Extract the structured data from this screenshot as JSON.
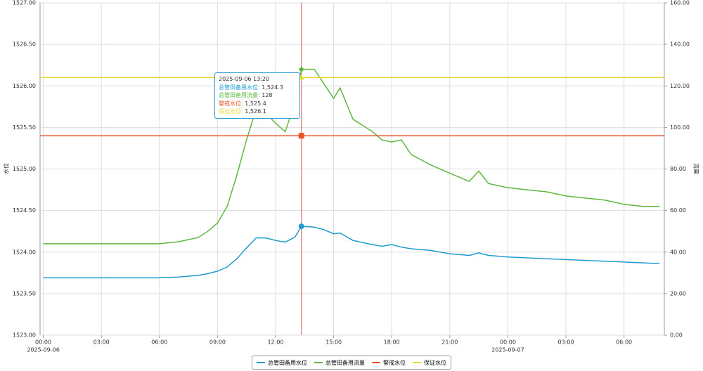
{
  "chart_data": {
    "type": "line",
    "x": [
      "2025-09-06 00:00",
      "2025-09-06 01:00",
      "2025-09-06 02:00",
      "2025-09-06 03:00",
      "2025-09-06 04:00",
      "2025-09-06 05:00",
      "2025-09-06 06:00",
      "2025-09-06 07:00",
      "2025-09-06 08:00",
      "2025-09-06 08:30",
      "2025-09-06 09:00",
      "2025-09-06 09:30",
      "2025-09-06 10:00",
      "2025-09-06 10:30",
      "2025-09-06 11:00",
      "2025-09-06 11:30",
      "2025-09-06 12:00",
      "2025-09-06 12:30",
      "2025-09-06 13:00",
      "2025-09-06 13:20",
      "2025-09-06 14:00",
      "2025-09-06 14:30",
      "2025-09-06 15:00",
      "2025-09-06 15:20",
      "2025-09-06 16:00",
      "2025-09-06 17:00",
      "2025-09-06 17:30",
      "2025-09-06 18:00",
      "2025-09-06 18:30",
      "2025-09-06 19:00",
      "2025-09-06 20:00",
      "2025-09-06 21:00",
      "2025-09-06 22:00",
      "2025-09-06 22:30",
      "2025-09-06 23:00",
      "2025-09-07 00:00",
      "2025-09-07 01:00",
      "2025-09-07 02:00",
      "2025-09-07 03:00",
      "2025-09-07 04:00",
      "2025-09-07 05:00",
      "2025-09-07 06:00",
      "2025-09-07 07:00",
      "2025-09-07 07:50"
    ],
    "series": [
      {
        "name": "总管田备用水位",
        "color": "#1f9bd1",
        "axis": "y",
        "values": [
          1523.69,
          1523.69,
          1523.69,
          1523.69,
          1523.69,
          1523.69,
          1523.69,
          1523.7,
          1523.72,
          1523.74,
          1523.77,
          1523.82,
          1523.92,
          1524.05,
          1524.17,
          1524.17,
          1524.14,
          1524.12,
          1524.18,
          1524.31,
          1524.3,
          1524.27,
          1524.22,
          1524.23,
          1524.14,
          1524.09,
          1524.07,
          1524.09,
          1524.06,
          1524.04,
          1524.02,
          1523.98,
          1523.96,
          1523.99,
          1523.96,
          1523.94,
          1523.93,
          1523.92,
          1523.91,
          1523.9,
          1523.89,
          1523.88,
          1523.87,
          1523.86
        ]
      },
      {
        "name": "总管田备用流量",
        "color": "#5cb83c",
        "axis": "y2",
        "values": [
          44,
          44,
          44,
          44,
          44,
          44,
          44,
          45,
          47,
          50,
          54,
          62,
          77,
          94,
          109,
          107,
          102,
          98,
          112,
          128,
          128,
          121,
          114,
          119,
          104,
          98,
          94,
          93,
          94,
          87,
          82,
          78,
          74,
          79,
          73,
          71,
          70,
          69,
          67,
          66,
          65,
          63,
          62,
          62
        ]
      },
      {
        "name": "警戒水位",
        "color": "#e8532b",
        "axis": "y",
        "value": 1525.4
      },
      {
        "name": "保证水位",
        "color": "#e6d92e",
        "axis": "y",
        "value": 1526.1
      }
    ],
    "xlim": [
      "2025-09-05 23:50",
      "2025-09-07 08:05"
    ],
    "xticks": [
      {
        "value": "2025-09-06 00:00",
        "label": "00:00"
      },
      {
        "value": "2025-09-06 03:00",
        "label": "03:00"
      },
      {
        "value": "2025-09-06 06:00",
        "label": "06:00"
      },
      {
        "value": "2025-09-06 09:00",
        "label": "09:00"
      },
      {
        "value": "2025-09-06 12:00",
        "label": "12:00"
      },
      {
        "value": "2025-09-06 15:00",
        "label": "15:00"
      },
      {
        "value": "2025-09-06 18:00",
        "label": "18:00"
      },
      {
        "value": "2025-09-06 21:00",
        "label": "21:00"
      },
      {
        "value": "2025-09-07 00:00",
        "label": "00:00"
      },
      {
        "value": "2025-09-07 03:00",
        "label": "03:00"
      },
      {
        "value": "2025-09-07 06:00",
        "label": "06:00"
      }
    ],
    "x_date_labels": [
      {
        "value": "2025-09-06 00:00",
        "label": "2025-09-06"
      },
      {
        "value": "2025-09-07 00:00",
        "label": "2025-09-07"
      }
    ],
    "ylabel": "水位",
    "ylim": [
      1523,
      1527
    ],
    "yticks": [
      {
        "value": 1523,
        "label": "1523.00"
      },
      {
        "value": 1523.5,
        "label": "1523.50"
      },
      {
        "value": 1524,
        "label": "1524.00"
      },
      {
        "value": 1524.5,
        "label": "1524.50"
      },
      {
        "value": 1525,
        "label": "1525.00"
      },
      {
        "value": 1525.5,
        "label": "1525.50"
      },
      {
        "value": 1526,
        "label": "1526.00"
      },
      {
        "value": 1526.5,
        "label": "1526.50"
      },
      {
        "value": 1527,
        "label": "1527.00"
      }
    ],
    "y2label": "流量",
    "y2lim": [
      0,
      160
    ],
    "y2ticks": [
      {
        "value": 0,
        "label": "0.00"
      },
      {
        "value": 20,
        "label": "20.00"
      },
      {
        "value": 40,
        "label": "40.00"
      },
      {
        "value": 60,
        "label": "60.00"
      },
      {
        "value": 80,
        "label": "80.00"
      },
      {
        "value": 100,
        "label": "100.00"
      },
      {
        "value": 120,
        "label": "120.00"
      },
      {
        "value": 140,
        "label": "140.00"
      },
      {
        "value": 160,
        "label": "160.00"
      }
    ],
    "grid": true,
    "cursor_index": 19,
    "tooltip": {
      "title": "2025-09-06 13:20",
      "rows": [
        {
          "label": "总管田备用水位:",
          "value": "1,524.3"
        },
        {
          "label": "总管田备用流量:",
          "value": "128"
        },
        {
          "label": "警戒水位:",
          "value": "1,525.4"
        },
        {
          "label": "保证水位:",
          "value": "1,526.1"
        }
      ]
    }
  }
}
